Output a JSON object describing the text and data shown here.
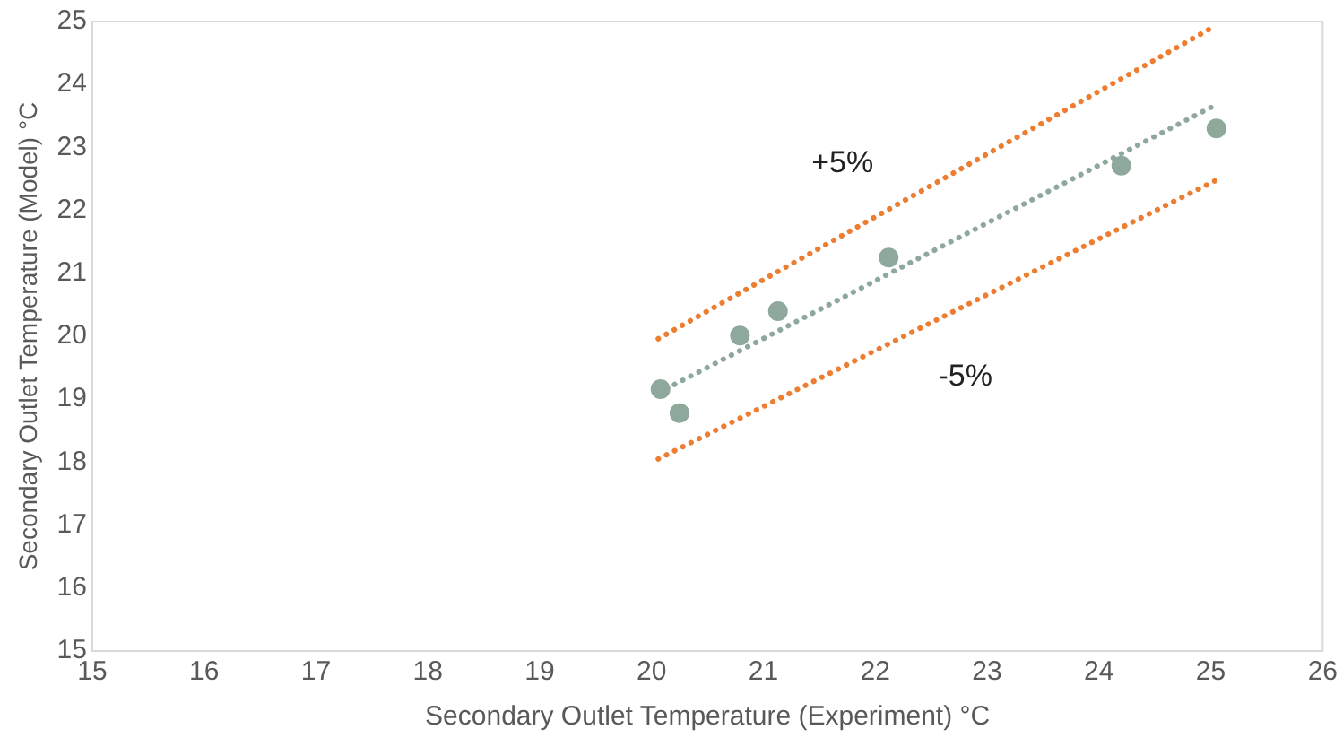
{
  "chart_data": {
    "type": "scatter",
    "xlabel": "Secondary Outlet Temperature (Experiment) °C",
    "ylabel": "Secondary Outlet Temperature (Model) °C",
    "xlim": [
      15,
      26
    ],
    "xticks": [
      15,
      16,
      17,
      18,
      19,
      20,
      21,
      22,
      23,
      24,
      25,
      26
    ],
    "ylim": [
      15,
      25
    ],
    "yticks": [
      15,
      16,
      17,
      18,
      19,
      20,
      21,
      22,
      23,
      24,
      25
    ],
    "grid": false,
    "legend": false,
    "marker": "circle",
    "series": [
      {
        "type": "scatter",
        "color": "#8fa89c",
        "x": [
          20.08,
          20.25,
          20.79,
          21.13,
          22.12,
          24.2,
          25.05
        ],
        "values": [
          19.16,
          18.78,
          20.01,
          20.4,
          21.25,
          22.71,
          23.3
        ]
      },
      {
        "type": "line",
        "color": "#8fa89c",
        "line_style": "dotted",
        "marker": "none",
        "x": [
          20.06,
          25.05
        ],
        "values": [
          19.1,
          23.68
        ]
      },
      {
        "type": "line",
        "name": "+5%",
        "color": "#ed7d31",
        "line_style": "dotted",
        "marker": "none",
        "x": [
          20.06,
          25.05
        ],
        "values": [
          19.96,
          24.94
        ]
      },
      {
        "type": "line",
        "name": "-5%",
        "color": "#ed7d31",
        "line_style": "dotted",
        "marker": "none",
        "x": [
          20.06,
          25.05
        ],
        "values": [
          18.05,
          22.48
        ]
      }
    ]
  }
}
